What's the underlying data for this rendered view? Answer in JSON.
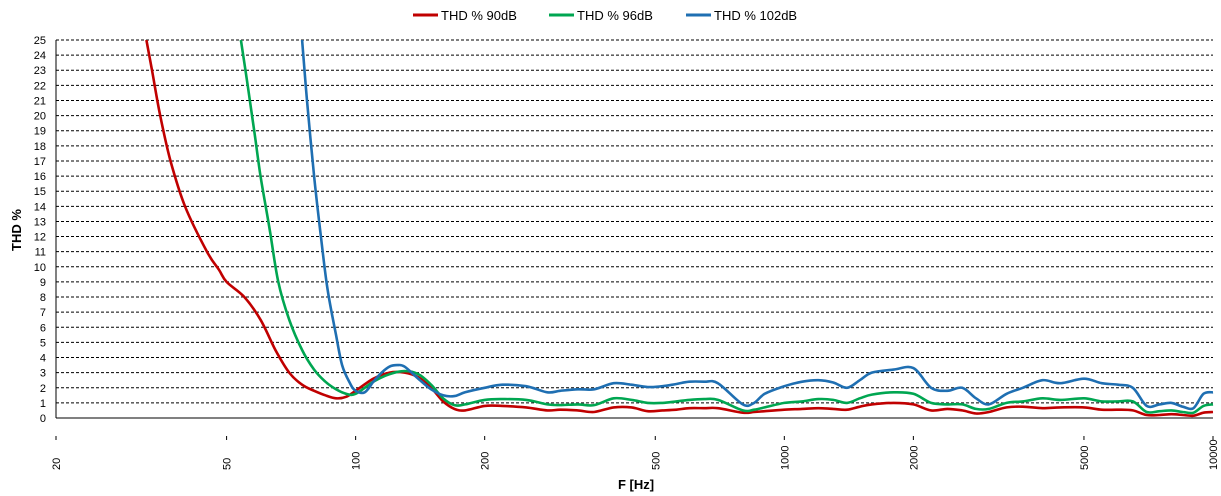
{
  "chart_data": {
    "type": "line",
    "title": "",
    "xlabel": "F [Hz]",
    "ylabel": "THD %",
    "x_scale": "log",
    "xlim": [
      20,
      10000
    ],
    "ylim": [
      0,
      25
    ],
    "grid": "horizontal dashed",
    "legend_position": "top-center",
    "x_ticks": [
      "20",
      "50",
      "100",
      "200",
      "500",
      "1000",
      "2000",
      "5000",
      "10000"
    ],
    "y_ticks": [
      "0",
      "1",
      "2",
      "3",
      "4",
      "5",
      "6",
      "7",
      "8",
      "9",
      "10",
      "11",
      "12",
      "13",
      "14",
      "15",
      "16",
      "17",
      "18",
      "19",
      "20",
      "21",
      "22",
      "23",
      "24",
      "25"
    ],
    "series": [
      {
        "name": "THD % 90dB",
        "color": "#c00000",
        "x": [
          32.5,
          33.5,
          35,
          37,
          40,
          45,
          48,
          50,
          55,
          60,
          65,
          70,
          75,
          80,
          85,
          90,
          95,
          100,
          110,
          120,
          130,
          140,
          150,
          160,
          170,
          180,
          200,
          220,
          250,
          280,
          300,
          330,
          360,
          400,
          440,
          480,
          520,
          560,
          600,
          650,
          700,
          800,
          850,
          900,
          1000,
          1100,
          1200,
          1300,
          1400,
          1500,
          1600,
          1800,
          2000,
          2200,
          2400,
          2600,
          2800,
          3000,
          3300,
          3600,
          4000,
          4400,
          5000,
          5500,
          6000,
          6500,
          7000,
          7500,
          8000,
          8500,
          9000,
          9500,
          10000
        ],
        "values": [
          25,
          23,
          20,
          17,
          14,
          11,
          9.8,
          9,
          8,
          6.5,
          4.5,
          3.0,
          2.2,
          1.8,
          1.5,
          1.3,
          1.4,
          1.8,
          2.6,
          3.0,
          3.0,
          2.7,
          2.0,
          1.1,
          0.6,
          0.5,
          0.8,
          0.8,
          0.7,
          0.5,
          0.55,
          0.5,
          0.4,
          0.7,
          0.7,
          0.45,
          0.5,
          0.55,
          0.65,
          0.65,
          0.65,
          0.35,
          0.4,
          0.45,
          0.55,
          0.6,
          0.65,
          0.6,
          0.55,
          0.75,
          0.9,
          1.0,
          0.9,
          0.5,
          0.6,
          0.5,
          0.3,
          0.4,
          0.7,
          0.75,
          0.65,
          0.7,
          0.7,
          0.55,
          0.55,
          0.5,
          0.2,
          0.2,
          0.25,
          0.2,
          0.15,
          0.35,
          0.4
        ]
      },
      {
        "name": "THD % 96dB",
        "color": "#00a651",
        "x": [
          54,
          56,
          58,
          60,
          63,
          66,
          70,
          75,
          80,
          85,
          90,
          95,
          100,
          110,
          120,
          130,
          140,
          150,
          160,
          170,
          180,
          200,
          220,
          250,
          280,
          300,
          330,
          360,
          400,
          440,
          480,
          520,
          560,
          600,
          650,
          700,
          800,
          850,
          900,
          1000,
          1100,
          1200,
          1300,
          1400,
          1500,
          1600,
          1800,
          2000,
          2200,
          2400,
          2600,
          2800,
          3000,
          3300,
          3600,
          4000,
          4400,
          5000,
          5500,
          6000,
          6500,
          7000,
          7500,
          8000,
          8500,
          9000,
          9500,
          10000
        ],
        "values": [
          25,
          22,
          19,
          16,
          12.5,
          9,
          6.5,
          4.5,
          3.2,
          2.4,
          1.9,
          1.6,
          1.6,
          2.4,
          2.9,
          3.1,
          2.9,
          2.2,
          1.3,
          0.85,
          0.9,
          1.2,
          1.25,
          1.2,
          0.9,
          0.85,
          0.9,
          0.85,
          1.3,
          1.2,
          1.0,
          1.0,
          1.1,
          1.2,
          1.25,
          1.2,
          0.5,
          0.55,
          0.7,
          1.0,
          1.1,
          1.25,
          1.2,
          1.0,
          1.3,
          1.55,
          1.7,
          1.6,
          1.0,
          0.9,
          0.9,
          0.6,
          0.6,
          1.0,
          1.1,
          1.3,
          1.2,
          1.3,
          1.1,
          1.1,
          1.1,
          0.4,
          0.45,
          0.5,
          0.4,
          0.35,
          0.8,
          0.9
        ]
      },
      {
        "name": "THD % 102dB",
        "color": "#1f6fb2",
        "x": [
          75,
          77,
          80,
          83,
          86,
          90,
          93,
          97,
          100,
          105,
          110,
          115,
          120,
          125,
          130,
          140,
          150,
          160,
          170,
          180,
          200,
          220,
          250,
          280,
          300,
          330,
          360,
          400,
          440,
          480,
          520,
          560,
          600,
          650,
          700,
          800,
          850,
          900,
          1000,
          1100,
          1200,
          1300,
          1400,
          1500,
          1600,
          1800,
          2000,
          2200,
          2400,
          2600,
          2800,
          3000,
          3300,
          3600,
          4000,
          4400,
          5000,
          5500,
          6000,
          6500,
          7000,
          7500,
          8000,
          8500,
          9000,
          9500,
          10000
        ],
        "values": [
          25,
          21,
          16,
          12,
          8.5,
          5.5,
          3.5,
          2.3,
          1.8,
          1.7,
          2.4,
          3.0,
          3.4,
          3.5,
          3.4,
          2.6,
          1.9,
          1.5,
          1.45,
          1.7,
          2.0,
          2.2,
          2.1,
          1.7,
          1.8,
          1.9,
          1.9,
          2.3,
          2.2,
          2.05,
          2.1,
          2.25,
          2.4,
          2.4,
          2.3,
          0.9,
          1.0,
          1.6,
          2.1,
          2.4,
          2.5,
          2.35,
          2.0,
          2.5,
          3.0,
          3.2,
          3.3,
          2.0,
          1.8,
          2.0,
          1.3,
          0.9,
          1.6,
          2.0,
          2.5,
          2.3,
          2.6,
          2.3,
          2.2,
          2.0,
          0.8,
          0.9,
          1.0,
          0.75,
          0.65,
          1.6,
          1.7
        ]
      }
    ]
  }
}
